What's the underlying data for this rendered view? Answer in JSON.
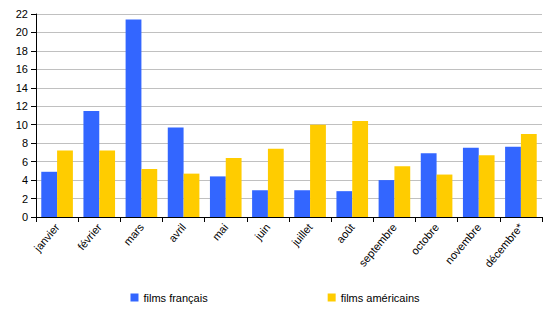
{
  "chart_data": {
    "type": "bar",
    "categories": [
      "janvier",
      "février",
      "mars",
      "avril",
      "mai",
      "juin",
      "juillet",
      "août",
      "septembre",
      "octobre",
      "novembre",
      "décembre*"
    ],
    "series": [
      {
        "name": "films français",
        "color": "#3366ff",
        "values": [
          4.9,
          11.5,
          21.4,
          9.7,
          4.4,
          2.9,
          2.9,
          2.8,
          4.0,
          6.9,
          7.5,
          7.6
        ]
      },
      {
        "name": "films américains",
        "color": "#ffcc00",
        "values": [
          7.2,
          7.2,
          5.2,
          4.7,
          6.4,
          7.4,
          10.0,
          10.4,
          5.5,
          4.6,
          6.7,
          9.0
        ]
      }
    ],
    "ylim": [
      0,
      22
    ],
    "yticks": [
      0,
      2,
      4,
      6,
      8,
      10,
      12,
      14,
      16,
      18,
      20,
      22
    ],
    "grid": true,
    "legend": "bottom"
  }
}
